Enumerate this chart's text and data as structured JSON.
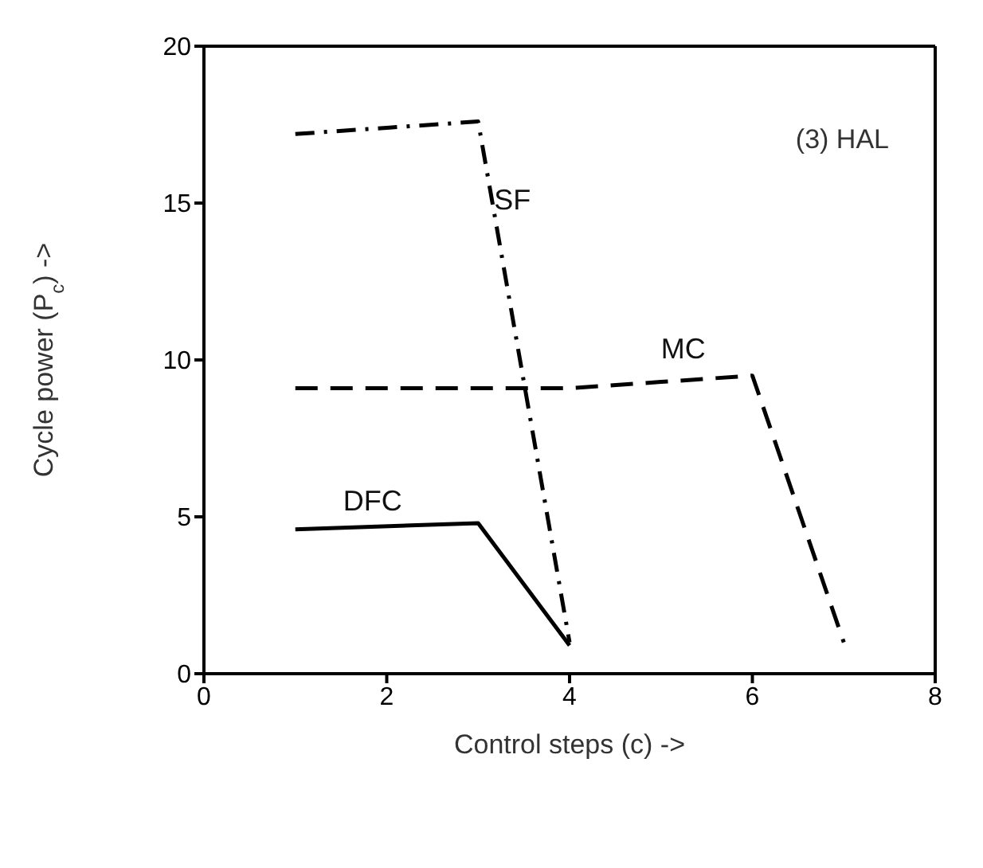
{
  "chart_data": {
    "type": "line",
    "xlabel": "Control steps (c) ->",
    "ylabel": "Cycle power (P$_{c}$) ->",
    "xlim": [
      0,
      8
    ],
    "xticks": [
      0,
      2,
      4,
      6,
      8
    ],
    "ylim": [
      0,
      20
    ],
    "yticks": [
      0,
      5,
      10,
      15,
      20
    ],
    "legend": false,
    "marker": "none",
    "series": [
      {
        "name": "SF",
        "color": "#000000",
        "line_style": "dashdot",
        "x": [
          1,
          2,
          3,
          4
        ],
        "values": [
          17.2,
          17.4,
          17.6,
          1
        ]
      },
      {
        "name": "MC",
        "color": "#000000",
        "line_style": "dashed",
        "x": [
          1,
          2,
          3,
          4,
          5,
          6,
          7
        ],
        "values": [
          9.1,
          9.1,
          9.1,
          9.1,
          9.3,
          9.5,
          1
        ]
      },
      {
        "name": "DFC",
        "color": "#000000",
        "line_style": "solid",
        "x": [
          1,
          3,
          4
        ],
        "values": [
          4.6,
          4.8,
          0.9
        ]
      }
    ],
    "annotations": [
      "(3) HAL"
    ]
  }
}
